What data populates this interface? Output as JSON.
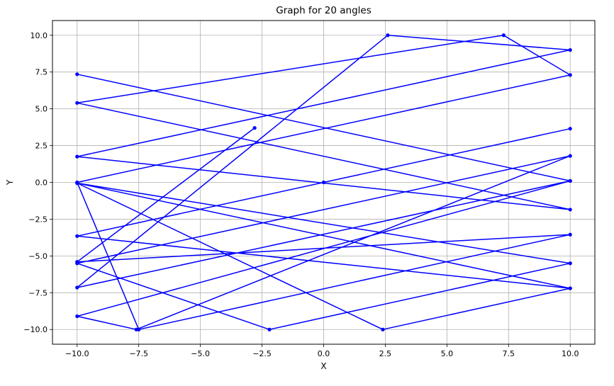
{
  "chart_data": {
    "type": "line",
    "title": "Graph for 20 angles",
    "xlabel": "X",
    "ylabel": "Y",
    "xlim": [
      -11,
      11
    ],
    "ylim": [
      -11,
      11
    ],
    "xticks": [
      -10.0,
      -7.5,
      -5.0,
      -2.5,
      0.0,
      2.5,
      5.0,
      7.5,
      10.0
    ],
    "xtick_labels": [
      "−10.0",
      "−7.5",
      "−5.0",
      "−2.5",
      "0.0",
      "2.5",
      "5.0",
      "7.5",
      "10.0"
    ],
    "yticks": [
      -10.0,
      -7.5,
      -5.0,
      -2.5,
      0.0,
      2.5,
      5.0,
      7.5,
      10.0
    ],
    "ytick_labels": [
      "−10.0",
      "−7.5",
      "−5.0",
      "−2.5",
      "0.0",
      "2.5",
      "5.0",
      "7.5",
      "10.0"
    ],
    "grid": true,
    "color": "#0000ff",
    "series": [
      {
        "x": [
          0.0,
          10.0,
          -10.0,
          10.0,
          -10.0,
          2.4,
          10.0,
          -10.0,
          10.0,
          -2.2,
          -10.0,
          10.0,
          -7.6,
          -10.0,
          10.0,
          -10.0,
          10.0,
          -10.0,
          2.6,
          10.0,
          -10.0,
          10.0,
          -10.0,
          7.3,
          10.0,
          -10.0,
          -7.5,
          10.0,
          -10.0,
          -2.8
        ],
        "y": [
          0.0,
          3.65,
          -3.65,
          -7.2,
          -0.05,
          -10.0,
          -7.2,
          -0.05,
          -5.5,
          -10.0,
          -5.5,
          1.8,
          -10.0,
          -9.1,
          0.1,
          7.35,
          0.1,
          -7.15,
          10.0,
          9.0,
          1.75,
          -1.85,
          5.4,
          10.0,
          7.3,
          0.0,
          -10.0,
          -3.55,
          -5.4,
          3.7
        ]
      }
    ]
  }
}
